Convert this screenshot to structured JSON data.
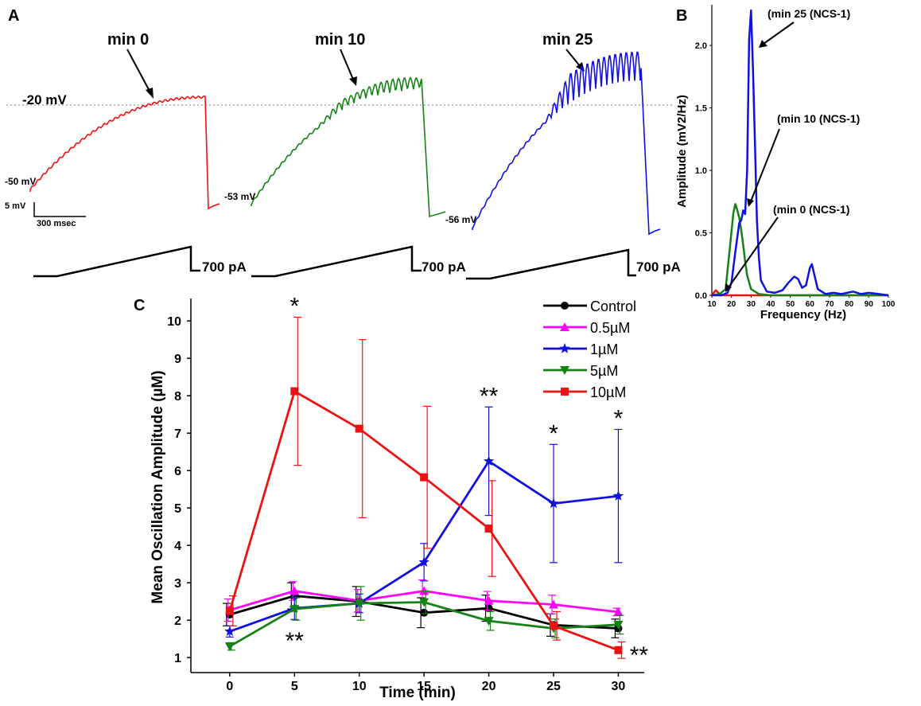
{
  "colors": {
    "control": "#000000",
    "c05": "#ff00ff",
    "c1": "#1010e0",
    "c5": "#148214",
    "c10": "#ee1111",
    "minute0": "#ee1111",
    "minute10": "#148214",
    "minute25": "#1010e0"
  },
  "panelA": {
    "letter": "A",
    "threshold_label": "-20 mV",
    "scalebar_v": "5 mV",
    "scalebar_h": "300 msec",
    "traces": [
      {
        "title": "min 0",
        "rest": "-50 mV",
        "stim": "700 pA",
        "color_key": "minute0"
      },
      {
        "title": "min 10",
        "rest": "-53 mV",
        "stim": "700 pA",
        "color_key": "minute10"
      },
      {
        "title": "min 25",
        "rest": "-56 mV",
        "stim": "700 pA",
        "color_key": "minute25"
      }
    ]
  },
  "panelB": {
    "letter": "B",
    "ylabel": "Amplitude (mV2/Hz)",
    "xlabel": "Frequency (Hz)",
    "annotations": [
      "(min 25 (NCS-1)",
      "(min 10 (NCS-1)",
      "(min 0 (NCS-1)"
    ],
    "xticks": [
      "10",
      "20",
      "30",
      "40",
      "50",
      "60",
      "70",
      "80",
      "90",
      "100"
    ],
    "yticks": [
      "0.0",
      "0.5",
      "1.0",
      "1.5",
      "2.0"
    ]
  },
  "chart_data": [
    {
      "type": "line",
      "panel": "B",
      "title": "",
      "xlabel": "Frequency (Hz)",
      "ylabel": "Amplitude (mV2/Hz)",
      "xlim": [
        10,
        100
      ],
      "ylim": [
        0,
        2.3
      ],
      "series": [
        {
          "name": "min 0 (NCS-1)",
          "color_key": "minute0",
          "x": [
            10,
            12,
            14,
            16,
            20,
            30,
            40,
            60,
            80,
            100
          ],
          "y": [
            0.0,
            0.04,
            0.01,
            0.0,
            0.0,
            0.0,
            0.0,
            0.0,
            0.0,
            0.0
          ]
        },
        {
          "name": "min 10 (NCS-1)",
          "color_key": "minute10",
          "x": [
            10,
            14,
            17,
            19,
            21,
            22,
            23,
            24,
            25,
            26,
            27,
            28,
            30,
            34,
            40,
            60,
            100
          ],
          "y": [
            0.0,
            0.01,
            0.05,
            0.35,
            0.66,
            0.73,
            0.68,
            0.62,
            0.52,
            0.4,
            0.27,
            0.16,
            0.05,
            0.01,
            0.0,
            0.0,
            0.0
          ]
        },
        {
          "name": "min 25 (NCS-1)",
          "color_key": "minute25",
          "x": [
            10,
            15,
            18,
            20,
            22,
            24,
            25,
            26,
            27,
            28,
            29,
            30,
            31,
            32,
            33,
            34,
            35,
            38,
            42,
            46,
            49,
            52,
            54,
            56,
            58,
            60,
            61,
            62,
            64,
            68,
            72,
            76,
            82,
            86,
            90,
            95,
            100
          ],
          "y": [
            0.0,
            0.0,
            0.02,
            0.1,
            0.35,
            0.58,
            0.6,
            0.68,
            0.65,
            1.0,
            2.05,
            2.28,
            1.8,
            1.2,
            0.6,
            0.3,
            0.12,
            0.03,
            0.02,
            0.04,
            0.1,
            0.15,
            0.13,
            0.06,
            0.08,
            0.22,
            0.25,
            0.18,
            0.05,
            0.01,
            0.02,
            0.01,
            0.03,
            0.01,
            0.02,
            0.01,
            0.0
          ]
        }
      ]
    },
    {
      "type": "line",
      "panel": "C",
      "title": "",
      "xlabel": "Time (min)",
      "ylabel": "Mean Oscillation Amplitude (µM)",
      "x": [
        0,
        5,
        10,
        15,
        20,
        25,
        30
      ],
      "xlim": [
        -3,
        32
      ],
      "ylim": [
        0.6,
        10.6
      ],
      "xticks": [
        "0",
        "5",
        "10",
        "15",
        "20",
        "25",
        "30"
      ],
      "yticks": [
        "1",
        "2",
        "3",
        "4",
        "5",
        "6",
        "7",
        "8",
        "9",
        "10"
      ],
      "series": [
        {
          "name": "Control",
          "marker": "circle",
          "color_key": "control",
          "values": [
            2.15,
            2.65,
            2.5,
            2.2,
            2.32,
            1.87,
            1.78
          ],
          "err": [
            0.3,
            0.35,
            0.4,
            0.4,
            0.35,
            0.3,
            0.25
          ]
        },
        {
          "name": "0.5µM",
          "marker": "triangle",
          "color_key": "c05",
          "values": [
            2.27,
            2.78,
            2.52,
            2.78,
            2.52,
            2.42,
            2.22
          ],
          "err": [
            0.3,
            0.25,
            0.3,
            0.3,
            0.25,
            0.25,
            0.1
          ]
        },
        {
          "name": "1µM",
          "marker": "star",
          "color_key": "c1",
          "values": [
            1.7,
            2.32,
            2.45,
            3.55,
            6.25,
            5.12,
            5.32
          ],
          "err": [
            0.15,
            0.3,
            0.25,
            0.5,
            1.45,
            1.58,
            1.78
          ]
        },
        {
          "name": "5µM",
          "marker": "triangle-down",
          "color_key": "c5",
          "values": [
            1.3,
            2.3,
            2.45,
            2.48,
            1.98,
            1.78,
            1.88
          ],
          "err": [
            0.1,
            0.3,
            0.45,
            0.3,
            0.25,
            0.25,
            0.25
          ]
        },
        {
          "name": "10µM",
          "marker": "square",
          "color_key": "c10",
          "values": [
            2.25,
            8.12,
            7.12,
            5.82,
            4.45,
            1.85,
            1.2
          ],
          "err": [
            0.4,
            1.98,
            2.38,
            1.9,
            1.28,
            0.38,
            0.22
          ]
        }
      ],
      "annotations": [
        {
          "text": "*",
          "x": 5,
          "pos": "above"
        },
        {
          "text": "**",
          "x": 5,
          "pos": "below"
        },
        {
          "text": "**",
          "x": 20,
          "pos": "above"
        },
        {
          "text": "*",
          "x": 25,
          "pos": "above"
        },
        {
          "text": "*",
          "x": 30,
          "pos": "above"
        },
        {
          "text": "**",
          "x": 30,
          "pos": "right"
        }
      ]
    }
  ],
  "panelC": {
    "letter": "C"
  }
}
